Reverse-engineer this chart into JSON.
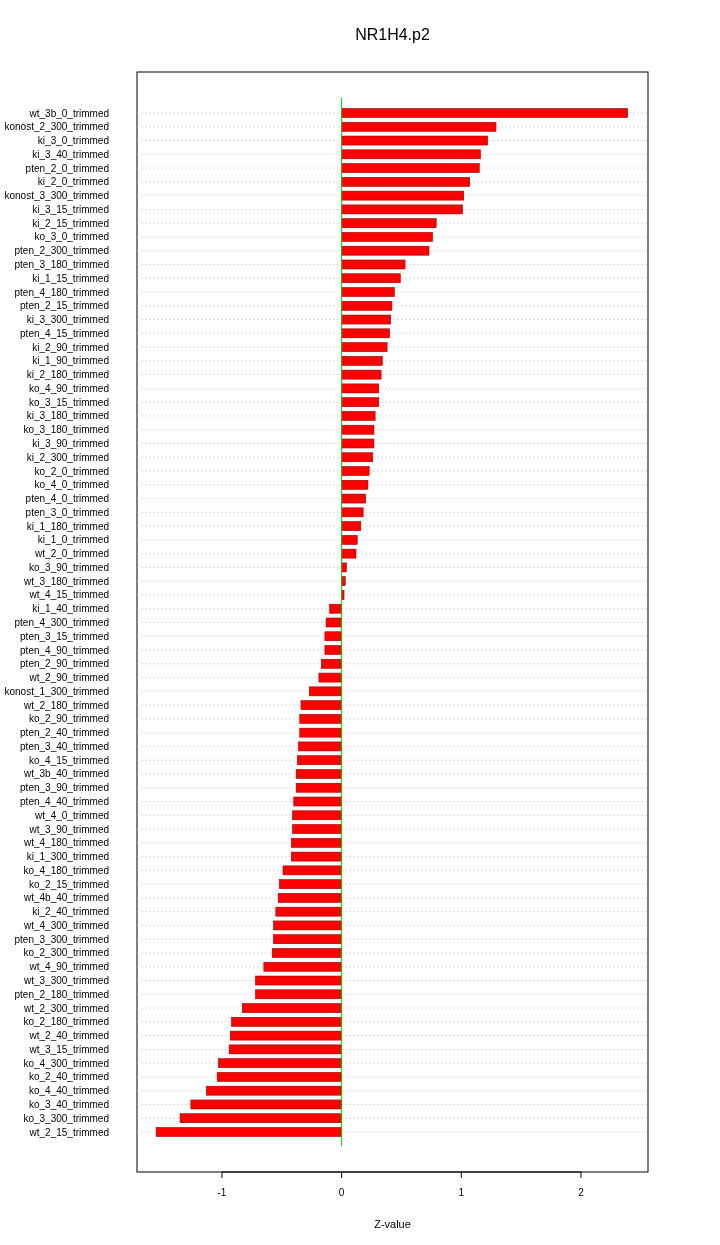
{
  "chart_data": {
    "type": "bar",
    "orientation": "horizontal",
    "title": "NR1H4.p2",
    "xlabel": "Z-value",
    "categories": [
      "wt_3b_0_trimmed",
      "konost_2_300_trimmed",
      "ki_3_0_trimmed",
      "ki_3_40_trimmed",
      "pten_2_0_trimmed",
      "ki_2_0_trimmed",
      "konost_3_300_trimmed",
      "ki_3_15_trimmed",
      "ki_2_15_trimmed",
      "ko_3_0_trimmed",
      "pten_2_300_trimmed",
      "pten_3_180_trimmed",
      "ki_1_15_trimmed",
      "pten_4_180_trimmed",
      "pten_2_15_trimmed",
      "ki_3_300_trimmed",
      "pten_4_15_trimmed",
      "ki_2_90_trimmed",
      "ki_1_90_trimmed",
      "ki_2_180_trimmed",
      "ko_4_90_trimmed",
      "ko_3_15_trimmed",
      "ki_3_180_trimmed",
      "ko_3_180_trimmed",
      "ki_3_90_trimmed",
      "ki_2_300_trimmed",
      "ko_2_0_trimmed",
      "ko_4_0_trimmed",
      "pten_4_0_trimmed",
      "pten_3_0_trimmed",
      "ki_1_180_trimmed",
      "ki_1_0_trimmed",
      "wt_2_0_trimmed",
      "ko_3_90_trimmed",
      "wt_3_180_trimmed",
      "wt_4_15_trimmed",
      "ki_1_40_trimmed",
      "pten_4_300_trimmed",
      "pten_3_15_trimmed",
      "pten_4_90_trimmed",
      "pten_2_90_trimmed",
      "wt_2_90_trimmed",
      "konost_1_300_trimmed",
      "wt_2_180_trimmed",
      "ko_2_90_trimmed",
      "pten_2_40_trimmed",
      "pten_3_40_trimmed",
      "ko_4_15_trimmed",
      "wt_3b_40_trimmed",
      "pten_3_90_trimmed",
      "pten_4_40_trimmed",
      "wt_4_0_trimmed",
      "wt_3_90_trimmed",
      "wt_4_180_trimmed",
      "ki_1_300_trimmed",
      "ko_4_180_trimmed",
      "ko_2_15_trimmed",
      "wt_4b_40_trimmed",
      "ki_2_40_trimmed",
      "wt_4_300_trimmed",
      "pten_3_300_trimmed",
      "ko_2_300_trimmed",
      "wt_4_90_trimmed",
      "wt_3_300_trimmed",
      "pten_2_180_trimmed",
      "wt_2_300_trimmed",
      "ko_2_180_trimmed",
      "wt_2_40_trimmed",
      "wt_3_15_trimmed",
      "ko_4_300_trimmed",
      "ko_2_40_trimmed",
      "ko_4_40_trimmed",
      "ko_3_40_trimmed",
      "ko_3_300_trimmed",
      "wt_2_15_trimmed"
    ],
    "values": [
      2.39,
      1.29,
      1.22,
      1.16,
      1.15,
      1.07,
      1.02,
      1.01,
      0.79,
      0.76,
      0.73,
      0.53,
      0.49,
      0.44,
      0.42,
      0.41,
      0.4,
      0.38,
      0.34,
      0.33,
      0.31,
      0.31,
      0.28,
      0.27,
      0.27,
      0.26,
      0.23,
      0.22,
      0.2,
      0.18,
      0.16,
      0.13,
      0.12,
      0.04,
      0.03,
      0.02,
      -0.1,
      -0.13,
      -0.14,
      -0.14,
      -0.17,
      -0.19,
      -0.27,
      -0.34,
      -0.35,
      -0.35,
      -0.36,
      -0.37,
      -0.38,
      -0.38,
      -0.4,
      -0.41,
      -0.41,
      -0.42,
      -0.42,
      -0.49,
      -0.52,
      -0.53,
      -0.55,
      -0.57,
      -0.57,
      -0.58,
      -0.65,
      -0.72,
      -0.72,
      -0.83,
      -0.92,
      -0.93,
      -0.94,
      -1.03,
      -1.04,
      -1.13,
      -1.26,
      -1.35,
      -1.55
    ],
    "color": "#ff0000",
    "xlim": [
      -1.71,
      2.56
    ],
    "xticks": [
      -1,
      0,
      1,
      2
    ],
    "grid": "y",
    "ref_lines": [
      {
        "axis": "x",
        "value": 0,
        "color": "#00cc00"
      }
    ]
  }
}
